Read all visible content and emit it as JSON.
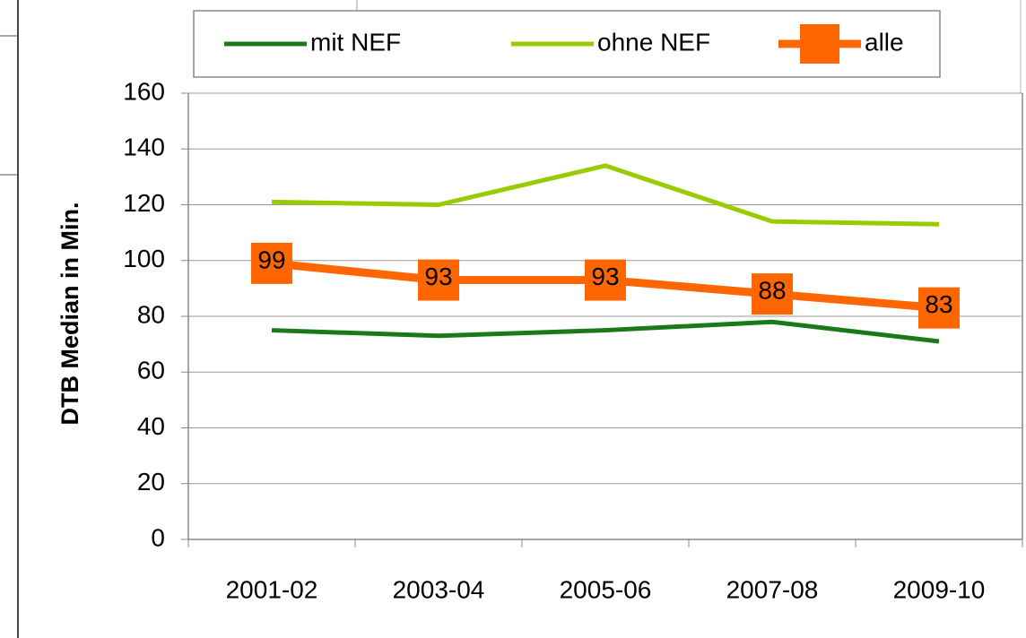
{
  "chart_data": {
    "type": "line",
    "y_label": "DTB Median in Min.",
    "categories": [
      "2001-02",
      "2003-04",
      "2005-06",
      "2007-08",
      "2009-10"
    ],
    "series": [
      {
        "name": "mit NEF",
        "color": "#1a7a1a",
        "values": [
          75,
          73,
          75,
          78,
          71
        ]
      },
      {
        "name": "ohne NEF",
        "color": "#99cc00",
        "values": [
          121,
          120,
          134,
          114,
          113
        ]
      },
      {
        "name": "alle",
        "color": "#ff6600",
        "values": [
          99,
          93,
          93,
          88,
          83
        ],
        "value_labels": [
          "99",
          "93",
          "93",
          "88",
          "83"
        ],
        "marker": "square"
      }
    ],
    "ylim": [
      0,
      160
    ],
    "yticks": [
      0,
      20,
      40,
      60,
      80,
      100,
      120,
      140,
      160
    ],
    "grid": true,
    "legend": "top"
  }
}
